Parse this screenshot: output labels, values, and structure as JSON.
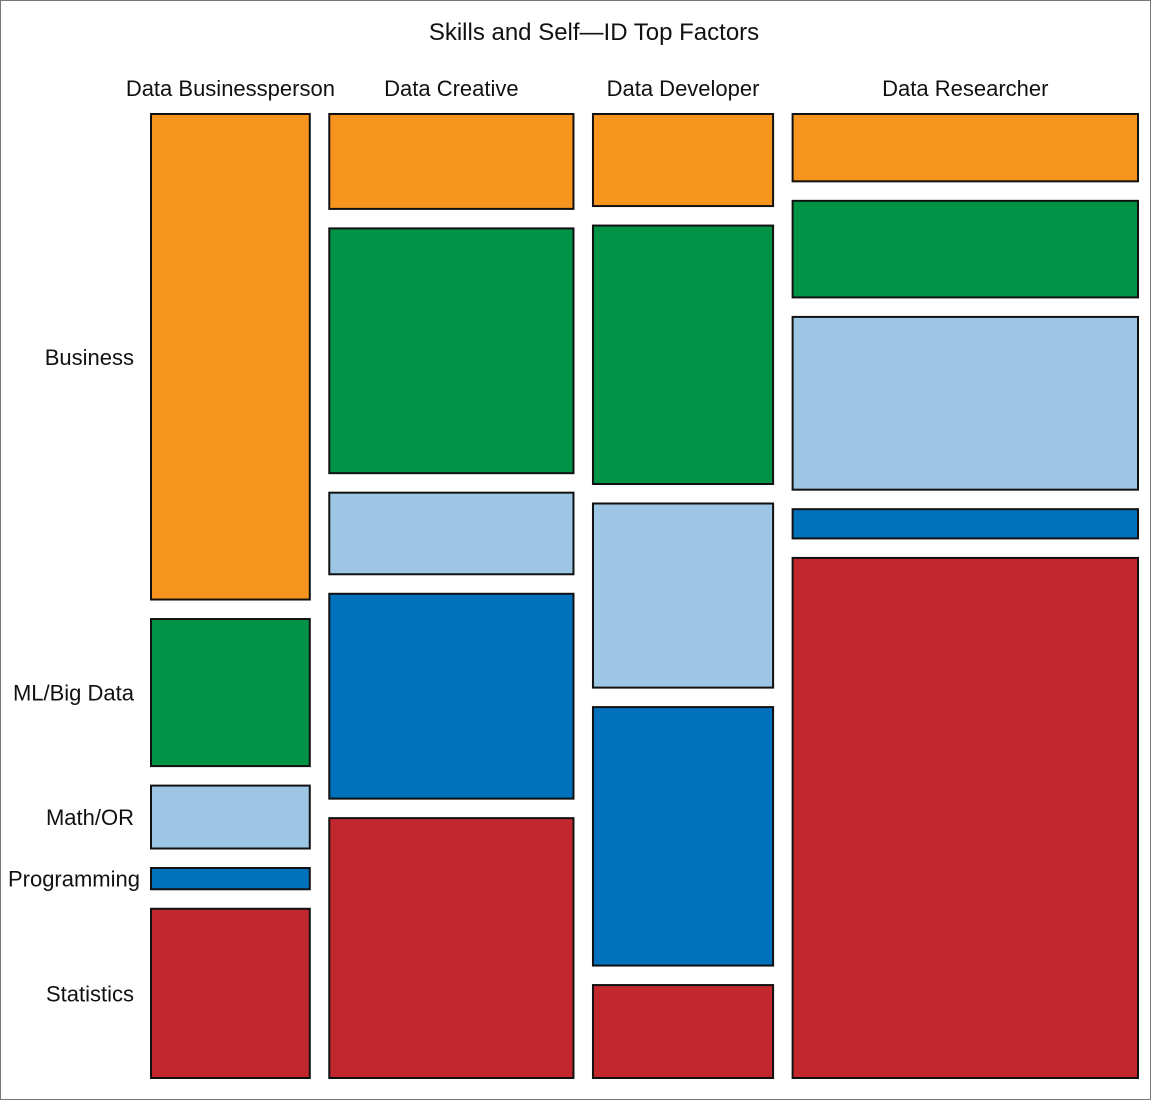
{
  "chart_data": {
    "type": "mosaic",
    "title": "Skills and Self—ID Top Factors",
    "columns": [
      "Data Businessperson",
      "Data Creative",
      "Data Developer",
      "Data Researcher"
    ],
    "column_shares": [
      0.171,
      0.263,
      0.194,
      0.372
    ],
    "rows": [
      "Business",
      "ML/Big Data",
      "Math/OR",
      "Programming",
      "Statistics"
    ],
    "row_colors": [
      "#F7941E",
      "#009245",
      "#9DC6E4",
      "#0071BC",
      "#C1272D"
    ],
    "row_shares_by_column": [
      [
        0.548,
        0.166,
        0.071,
        0.024,
        0.191
      ],
      [
        0.107,
        0.276,
        0.092,
        0.231,
        0.293
      ],
      [
        0.104,
        0.292,
        0.208,
        0.292,
        0.105
      ],
      [
        0.076,
        0.109,
        0.195,
        0.033,
        0.587
      ]
    ],
    "grid": false,
    "legend": "none"
  }
}
